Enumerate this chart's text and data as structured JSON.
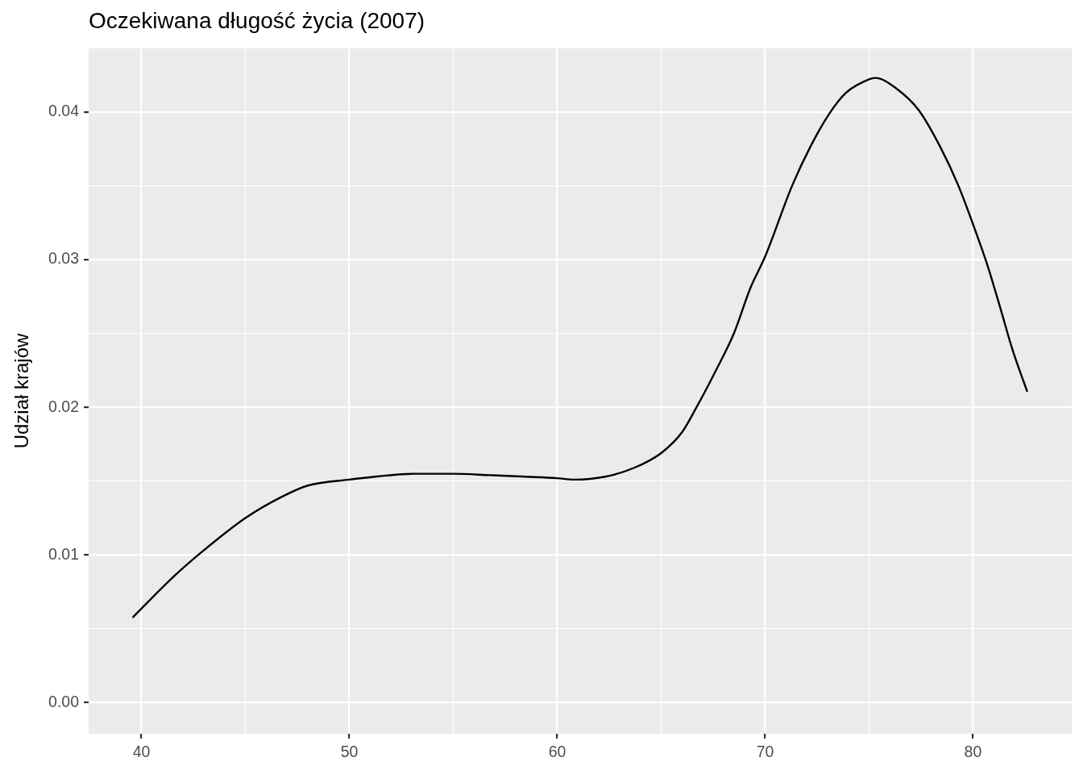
{
  "chart_data": {
    "type": "line",
    "title": "Oczekiwana długość życia (2007)",
    "ylabel": "Udział krajów",
    "x": [
      39.6,
      41.6,
      42.9,
      45,
      46.7,
      48,
      50,
      53.2,
      55,
      56.8,
      58.5,
      60,
      60.8,
      62.3,
      63.7,
      65,
      66,
      66.7,
      67.6,
      68.5,
      69.3,
      70,
      71.3,
      72.2,
      73.1,
      73.9,
      75,
      75.3,
      76.3,
      77.4,
      78.4,
      79.3,
      80,
      80.7,
      81.3,
      81.9,
      82.6
    ],
    "series": [
      {
        "color": "#000000",
        "values": [
          0.0058,
          0.0086,
          0.0102,
          0.0125,
          0.0139,
          0.0147,
          0.0151,
          0.0155,
          0.0155,
          0.0154,
          0.0153,
          0.0152,
          0.0151,
          0.0153,
          0.0159,
          0.0169,
          0.0183,
          0.02,
          0.0224,
          0.025,
          0.0281,
          0.0302,
          0.035,
          0.0377,
          0.0399,
          0.0413,
          0.0422,
          0.0423,
          0.0416,
          0.0401,
          0.0377,
          0.035,
          0.0324,
          0.0296,
          0.0268,
          0.0239,
          0.0211
        ]
      }
    ],
    "xlim": [
      37.46,
      84.75
    ],
    "ylim": [
      -0.0021,
      0.0443
    ],
    "xticks": [
      40,
      {
        "value": 45,
        "label": null
      },
      50,
      {
        "value": 55,
        "label": null
      },
      60,
      {
        "value": 65,
        "label": null
      },
      70,
      {
        "value": 75,
        "label": null
      },
      80
    ],
    "yticks": [
      {
        "value": 0,
        "label": "0.00"
      },
      {
        "value": 0.005,
        "label": null
      },
      {
        "value": 0.01,
        "label": "0.01"
      },
      {
        "value": 0.015,
        "label": null
      },
      {
        "value": 0.02,
        "label": "0.02"
      },
      {
        "value": 0.025,
        "label": null
      },
      {
        "value": 0.03,
        "label": "0.03"
      },
      {
        "value": 0.035,
        "label": null
      },
      {
        "value": 0.04,
        "label": "0.04"
      }
    ],
    "grid": true,
    "marker": "none",
    "line_style": "solid"
  }
}
